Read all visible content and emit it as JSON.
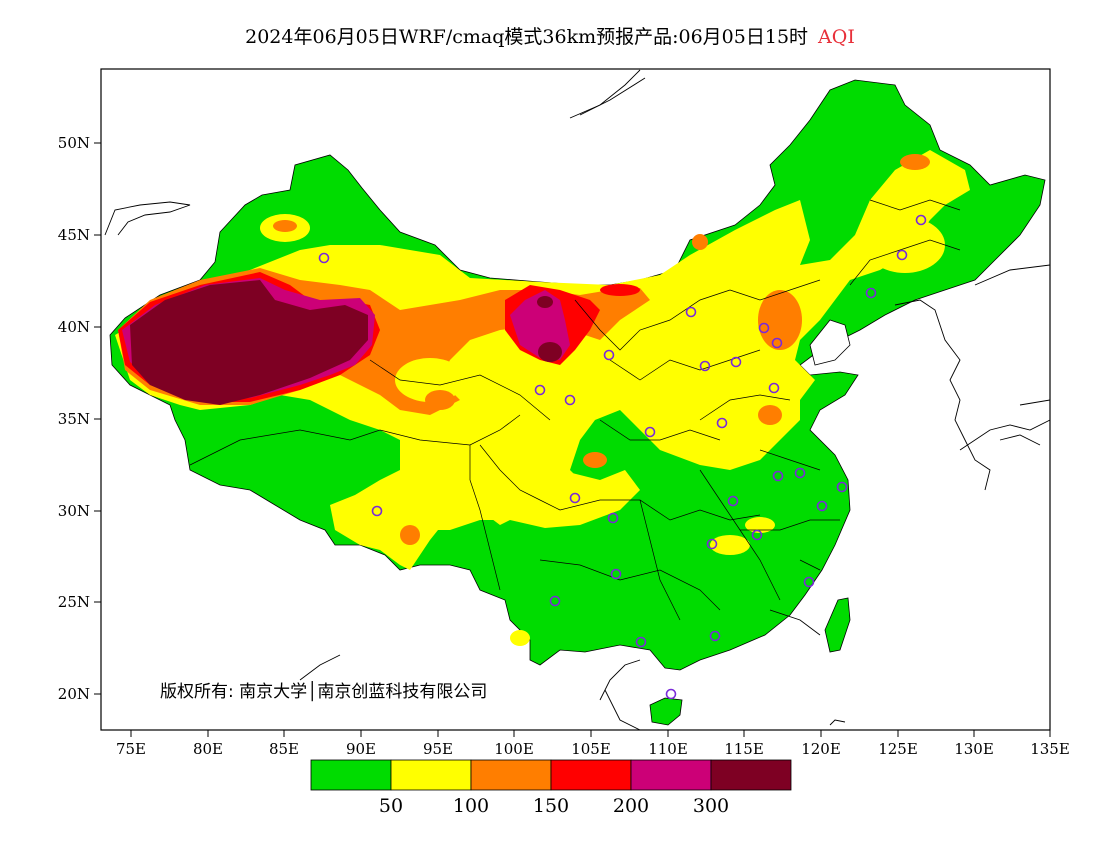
{
  "title": {
    "main": "2024年06月05日WRF/cmaq模式36km预报产品:06月05日15时",
    "variable": "AQI",
    "variable_color": "#e8303a"
  },
  "copyright": "版权所有: 南京大学│南京创蓝科技有限公司",
  "axes": {
    "lat_ticks": [
      "50N",
      "45N",
      "40N",
      "35N",
      "30N",
      "25N",
      "20N"
    ],
    "lon_ticks": [
      "75E",
      "80E",
      "85E",
      "90E",
      "95E",
      "100E",
      "105E",
      "110E",
      "115E",
      "120E",
      "125E",
      "130E",
      "135E"
    ]
  },
  "colorbar": {
    "colors": [
      "#00dc00",
      "#ffff00",
      "#ff7e00",
      "#ff0000",
      "#cc0077",
      "#7e0023"
    ],
    "labels": [
      "50",
      "100",
      "150",
      "200",
      "300"
    ]
  },
  "stations_color": "#7a2ad9"
}
